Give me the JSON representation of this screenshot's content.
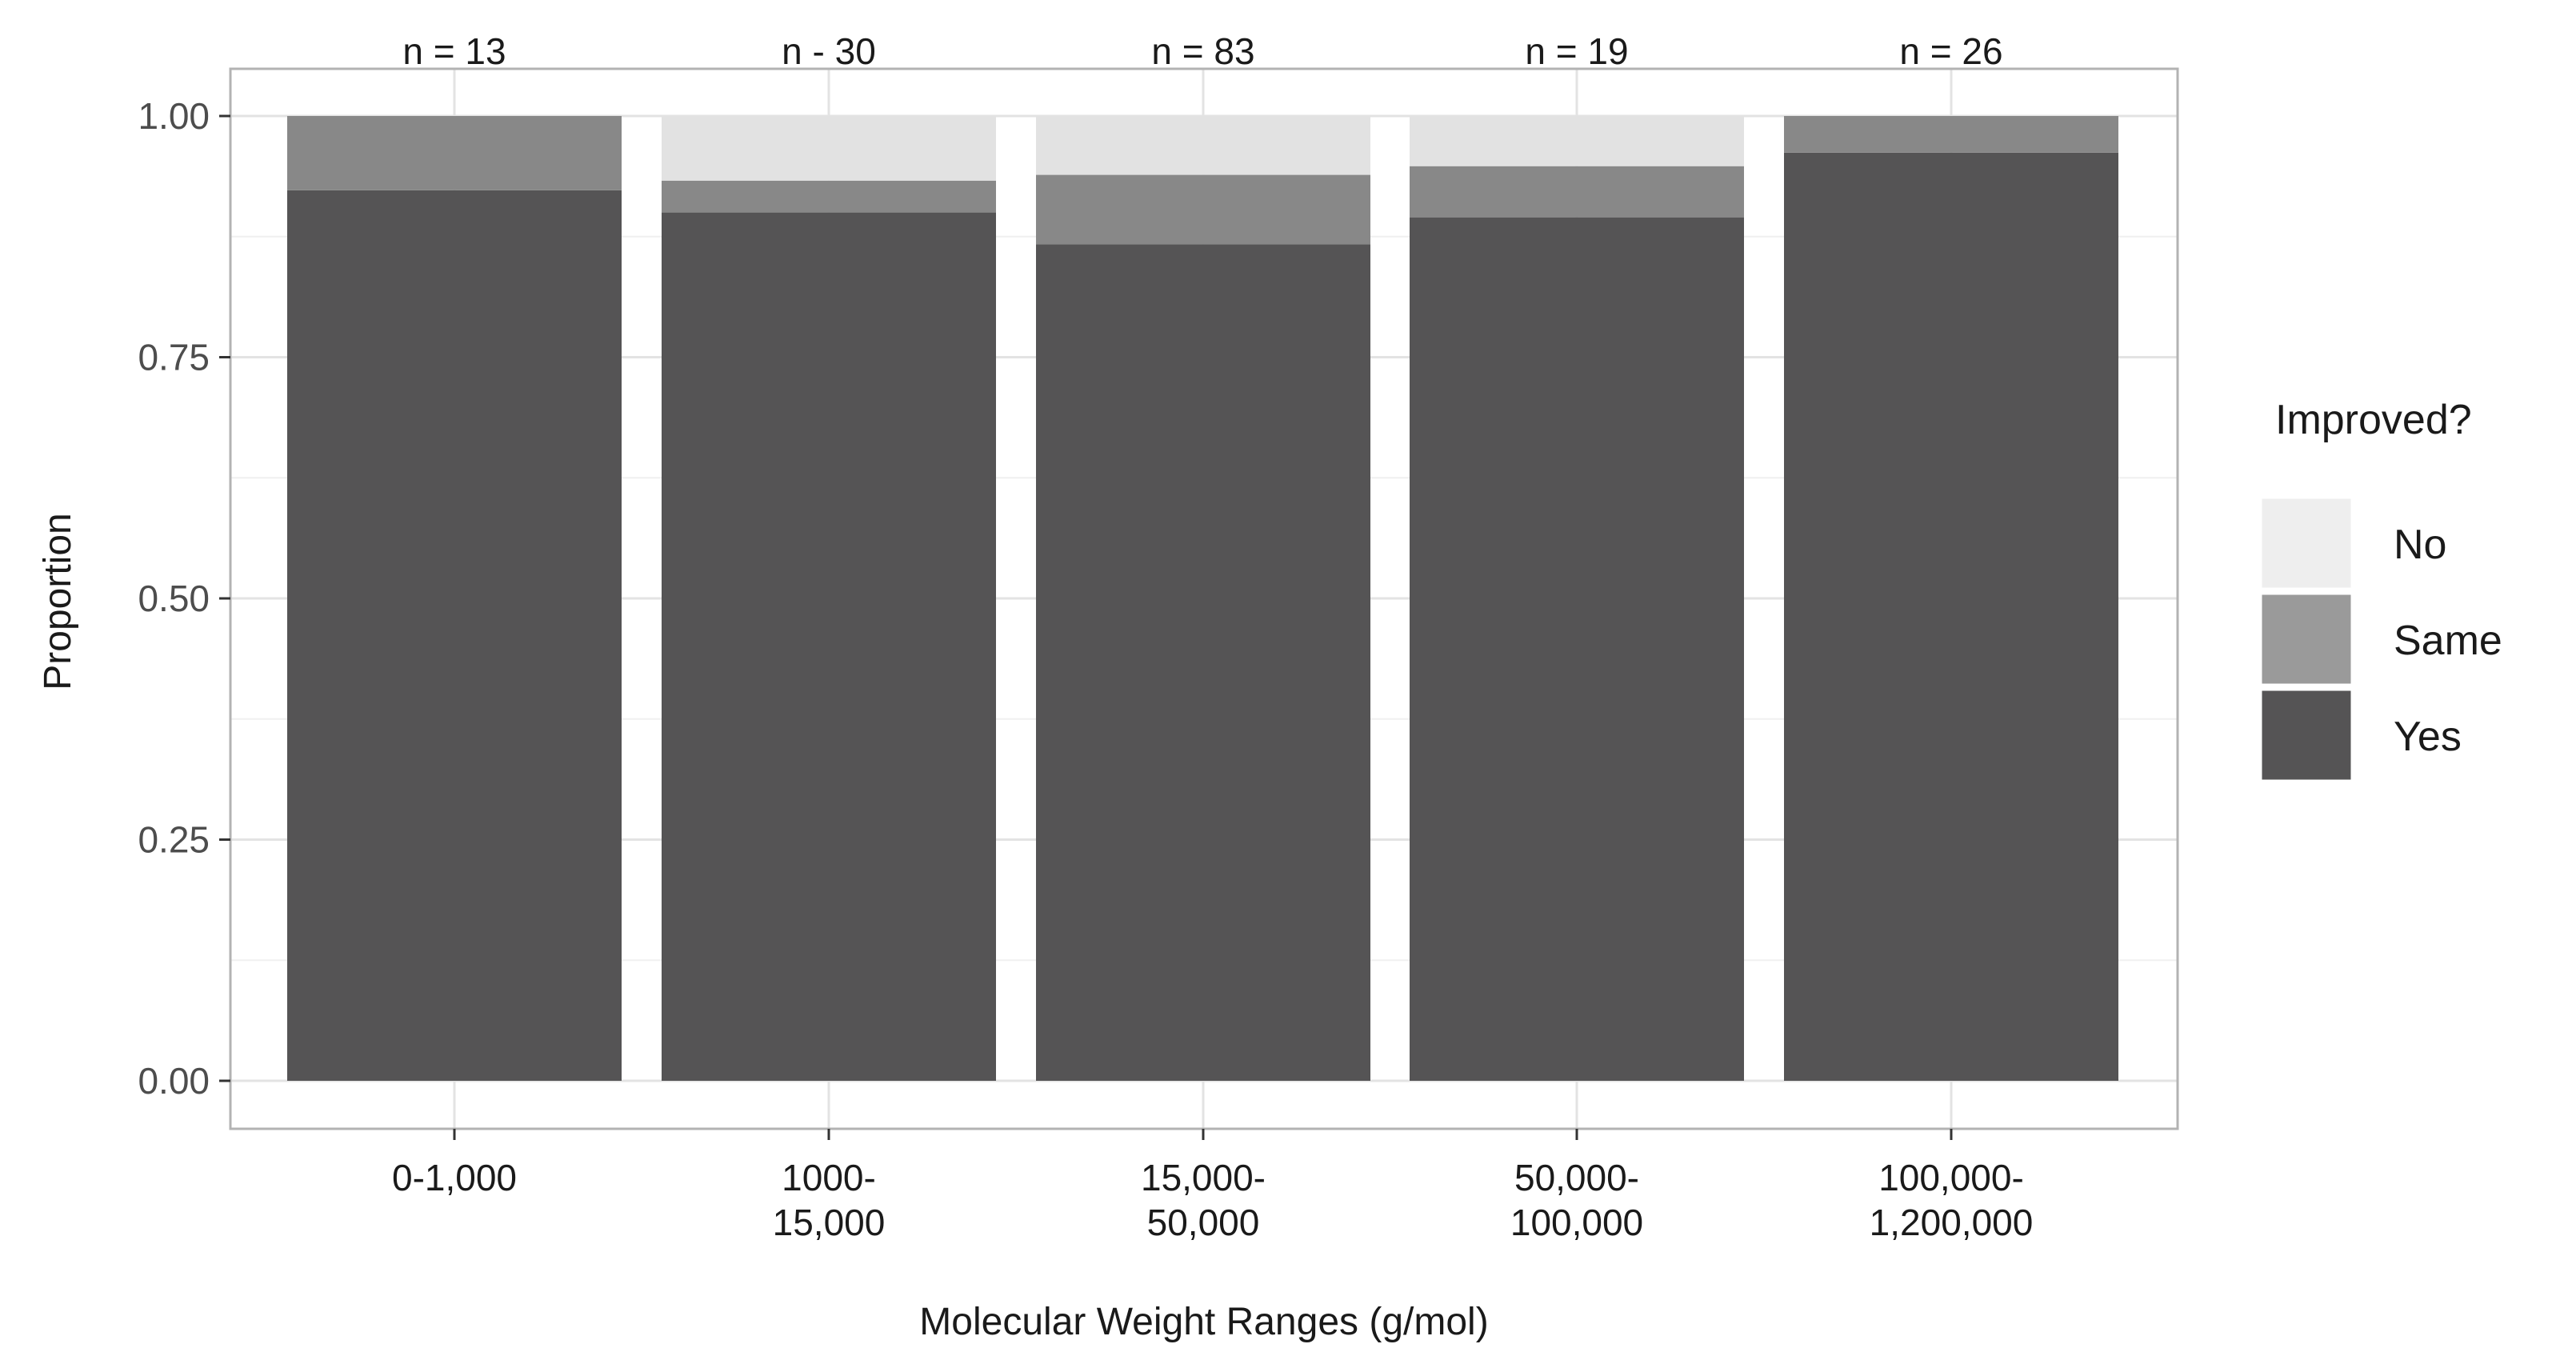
{
  "chart_data": {
    "type": "bar",
    "stacked": true,
    "xlabel": "Molecular Weight Ranges (g/mol)",
    "ylabel": "Proportion",
    "ylim": [
      0,
      1
    ],
    "yticks": [
      "0.00",
      "0.25",
      "0.50",
      "0.75",
      "1.00"
    ],
    "ytick_values": [
      0,
      0.25,
      0.5,
      0.75,
      1.0
    ],
    "grid": true,
    "categories": [
      [
        "0-1,000"
      ],
      [
        "1000-",
        "15,000"
      ],
      [
        "15,000-",
        "50,000"
      ],
      [
        "50,000-",
        "100,000"
      ],
      [
        "100,000-",
        "1,200,000"
      ]
    ],
    "n_labels": [
      "n = 13",
      "n - 30",
      "n = 83",
      "n = 19",
      "n = 26"
    ],
    "series": [
      {
        "name": "Yes",
        "values": [
          0.923,
          0.9,
          0.867,
          0.895,
          0.962
        ],
        "color": "#555455"
      },
      {
        "name": "Same",
        "values": [
          0.077,
          0.033,
          0.072,
          0.053,
          0.038
        ],
        "color": "#888888"
      },
      {
        "name": "No",
        "values": [
          0.0,
          0.067,
          0.061,
          0.052,
          0.0
        ],
        "color": "#e2e2e2"
      }
    ],
    "legend": {
      "title": "Improved?",
      "position": "right",
      "items": [
        {
          "name": "No",
          "color": "#eeeeee"
        },
        {
          "name": "Same",
          "color": "#9a9a9a"
        },
        {
          "name": "Yes",
          "color": "#555455"
        }
      ]
    }
  }
}
